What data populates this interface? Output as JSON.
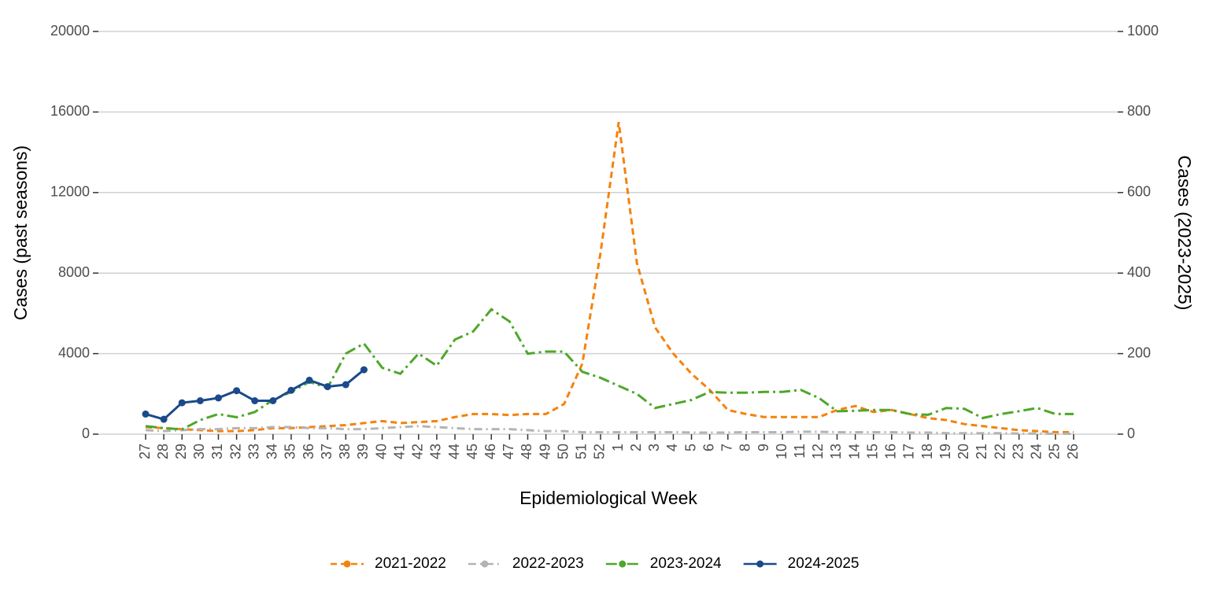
{
  "chart_data": {
    "type": "line",
    "x_label": "Epidemiological Week",
    "y_label": "Cases (past seasons)",
    "y2_label": "Cases (2023-2025)",
    "categories": [
      "27",
      "28",
      "29",
      "30",
      "31",
      "32",
      "33",
      "34",
      "35",
      "36",
      "37",
      "38",
      "39",
      "40",
      "41",
      "42",
      "43",
      "44",
      "45",
      "46",
      "47",
      "48",
      "49",
      "50",
      "51",
      "52",
      "1",
      "2",
      "3",
      "4",
      "5",
      "6",
      "7",
      "8",
      "9",
      "10",
      "11",
      "12",
      "13",
      "14",
      "15",
      "16",
      "17",
      "18",
      "19",
      "20",
      "21",
      "22",
      "23",
      "24",
      "25",
      "26"
    ],
    "ylim": [
      0,
      20000
    ],
    "yticks": [
      0,
      4000,
      8000,
      12000,
      16000,
      20000
    ],
    "y2lim": [
      0,
      1000
    ],
    "y2ticks": [
      0,
      200,
      400,
      600,
      800,
      1000
    ],
    "grid": true,
    "legend": "bottom",
    "series": [
      {
        "name": "2021-2022",
        "color": "#f5820d",
        "dash": "dashed",
        "markers": false,
        "values": [
          350,
          300,
          250,
          200,
          150,
          150,
          200,
          300,
          300,
          350,
          400,
          450,
          550,
          650,
          550,
          600,
          650,
          850,
          1000,
          1000,
          950,
          1000,
          1000,
          1500,
          3500,
          9000,
          15500,
          8500,
          5300,
          4000,
          3000,
          2200,
          1200,
          1000,
          850,
          850,
          850,
          850,
          1200,
          1400,
          1100,
          1200,
          1000,
          800,
          700,
          500,
          400,
          300,
          200,
          150,
          100,
          100
        ]
      },
      {
        "name": "2022-2023",
        "color": "#b4b4b4",
        "dash": "dotdash",
        "markers": false,
        "values": [
          200,
          150,
          200,
          250,
          250,
          300,
          300,
          350,
          350,
          300,
          300,
          250,
          250,
          300,
          350,
          400,
          350,
          300,
          250,
          250,
          250,
          200,
          150,
          150,
          100,
          100,
          100,
          100,
          100,
          100,
          80,
          80,
          80,
          100,
          100,
          100,
          120,
          120,
          100,
          100,
          100,
          100,
          80,
          80,
          50,
          50,
          50,
          50,
          30,
          30,
          20,
          20
        ]
      },
      {
        "name": "2023-2024",
        "color": "#4ea72a",
        "dash": "longdash",
        "markers": false,
        "axis": "y2",
        "values": [
          20,
          15,
          12,
          35,
          50,
          42,
          55,
          85,
          105,
          130,
          115,
          200,
          225,
          165,
          150,
          200,
          170,
          235,
          255,
          310,
          280,
          200,
          205,
          205,
          155,
          140,
          120,
          100,
          65,
          75,
          85,
          105,
          103,
          103,
          105,
          105,
          110,
          90,
          57,
          58,
          60,
          60,
          50,
          48,
          65,
          63,
          40,
          50,
          57,
          65,
          50,
          50
        ]
      },
      {
        "name": "2024-2025",
        "color": "#1a4a8a",
        "dash": "solid",
        "markers": true,
        "axis": "y2",
        "values": [
          50,
          37,
          78,
          83,
          90,
          108,
          83,
          83,
          109,
          134,
          118,
          123,
          160,
          null,
          null,
          null,
          null,
          null,
          null,
          null,
          null,
          null,
          null,
          null,
          null,
          null,
          null,
          null,
          null,
          null,
          null,
          null,
          null,
          null,
          null,
          null,
          null,
          null,
          null,
          null,
          null,
          null,
          null,
          null,
          null,
          null,
          null,
          null,
          null,
          null,
          null,
          null
        ]
      }
    ]
  }
}
